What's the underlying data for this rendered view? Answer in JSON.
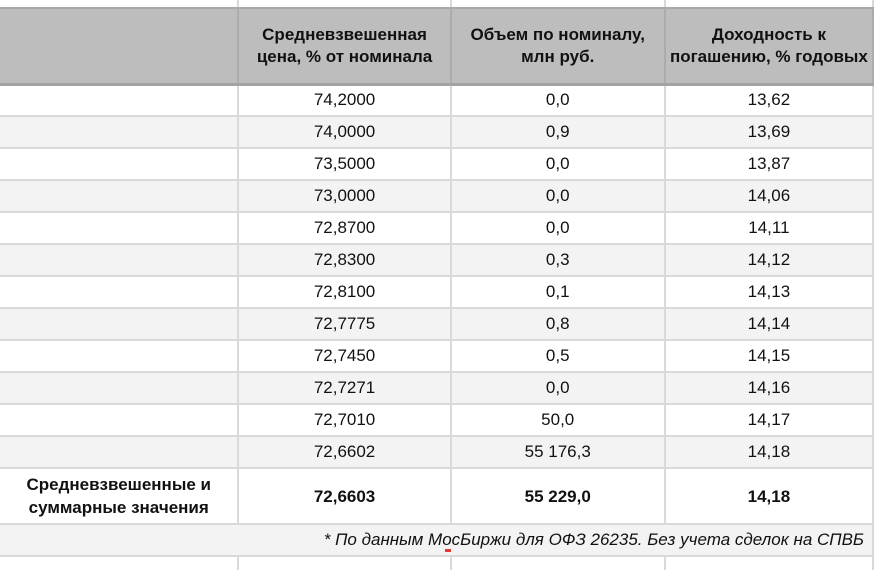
{
  "table": {
    "headers": [
      "",
      "Средневзвешенная цена, % от номинала",
      "Объем по номиналу, млн руб.",
      "Доходность к погашению, % годовых"
    ],
    "rows": [
      {
        "label": "",
        "price": "74,2000",
        "volume": "0,0",
        "yield": "13,62"
      },
      {
        "label": "",
        "price": "74,0000",
        "volume": "0,9",
        "yield": "13,69"
      },
      {
        "label": "",
        "price": "73,5000",
        "volume": "0,0",
        "yield": "13,87"
      },
      {
        "label": "",
        "price": "73,0000",
        "volume": "0,0",
        "yield": "14,06"
      },
      {
        "label": "",
        "price": "72,8700",
        "volume": "0,0",
        "yield": "14,11"
      },
      {
        "label": "",
        "price": "72,8300",
        "volume": "0,3",
        "yield": "14,12"
      },
      {
        "label": "",
        "price": "72,8100",
        "volume": "0,1",
        "yield": "14,13"
      },
      {
        "label": "",
        "price": "72,7775",
        "volume": "0,8",
        "yield": "14,14"
      },
      {
        "label": "",
        "price": "72,7450",
        "volume": "0,5",
        "yield": "14,15"
      },
      {
        "label": "",
        "price": "72,7271",
        "volume": "0,0",
        "yield": "14,16"
      },
      {
        "label": "",
        "price": "72,7010",
        "volume": "50,0",
        "yield": "14,17"
      },
      {
        "label": "",
        "price": "72,6602",
        "volume": "55 176,3",
        "yield": "14,18"
      }
    ],
    "total": {
      "label": "Средневзвешенные и суммарные значения",
      "price": "72,6603",
      "volume": "55 229,0",
      "yield": "14,18"
    },
    "footnote": "* По данным МосБиржи для ОФЗ 26235. Без учета сделок на СПВБ"
  },
  "colors": {
    "header_bg": "#bdbdbd",
    "stripe_bg": "#f3f3f3",
    "grid": "#d9d9d9",
    "marker": "#e03c31"
  }
}
